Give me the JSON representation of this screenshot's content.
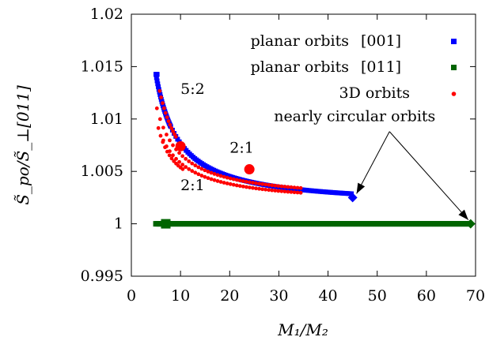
{
  "chart_data": {
    "type": "scatter",
    "xlabel": "M₁/M₂",
    "ylabel": "S̃_po/S̃_⊥[011]",
    "xlim": [
      0,
      70
    ],
    "ylim": [
      0.995,
      1.02
    ],
    "x_ticks": [
      0,
      10,
      20,
      30,
      40,
      50,
      60,
      70
    ],
    "y_ticks": [
      0.995,
      1,
      1.005,
      1.01,
      1.015,
      1.02
    ],
    "x_tick_labels": [
      "0",
      "10",
      "20",
      "30",
      "40",
      "50",
      "60",
      "70"
    ],
    "y_tick_labels": [
      "0.995",
      "1",
      "1.005",
      "1.01",
      "1.015",
      "1.02"
    ],
    "grid": false,
    "legend_position": "top-right",
    "series": [
      {
        "name": "planar orbits [001]",
        "legend_text": "planar orbits",
        "legend_tag": "[001]",
        "color": "#0000ff",
        "marker": "square",
        "x_start": 5.0,
        "x_end": 45.0,
        "endpoint": {
          "x": 45.0,
          "y": 1.0025,
          "marker": "diamond"
        }
      },
      {
        "name": "planar orbits [011]",
        "legend_text": "planar orbits",
        "legend_tag": "[011]",
        "color": "#006400",
        "marker": "square",
        "x_start": 5.0,
        "x_end": 69.0,
        "y": 1.0,
        "bigmarker": {
          "x": 7.0,
          "y": 1.0
        },
        "endpoint": {
          "x": 69.0,
          "y": 1.0,
          "marker": "diamond"
        }
      },
      {
        "name": "3D orbits",
        "legend_text": "3D orbits",
        "color": "#ff0000",
        "marker": "circle",
        "branches": [
          {
            "x_start": 5.2,
            "x_end": 35.0
          },
          {
            "x_start": 5.5,
            "x_end": 10.5
          },
          {
            "x_start": 6.5,
            "x_end": 35.0
          }
        ],
        "bigmarkers": [
          {
            "x": 10.0,
            "y": 1.0074
          },
          {
            "x": 24.0,
            "y": 1.0052
          }
        ]
      }
    ],
    "annotations": [
      {
        "text": "5:2",
        "x": 10.0,
        "y": 1.0124
      },
      {
        "text": "2:1",
        "x": 20.0,
        "y": 1.0068
      },
      {
        "text": "2:1",
        "x": 10.0,
        "y": 1.0032
      },
      {
        "text": "nearly circular orbits",
        "x": 29.0,
        "y": 1.0098
      }
    ]
  }
}
